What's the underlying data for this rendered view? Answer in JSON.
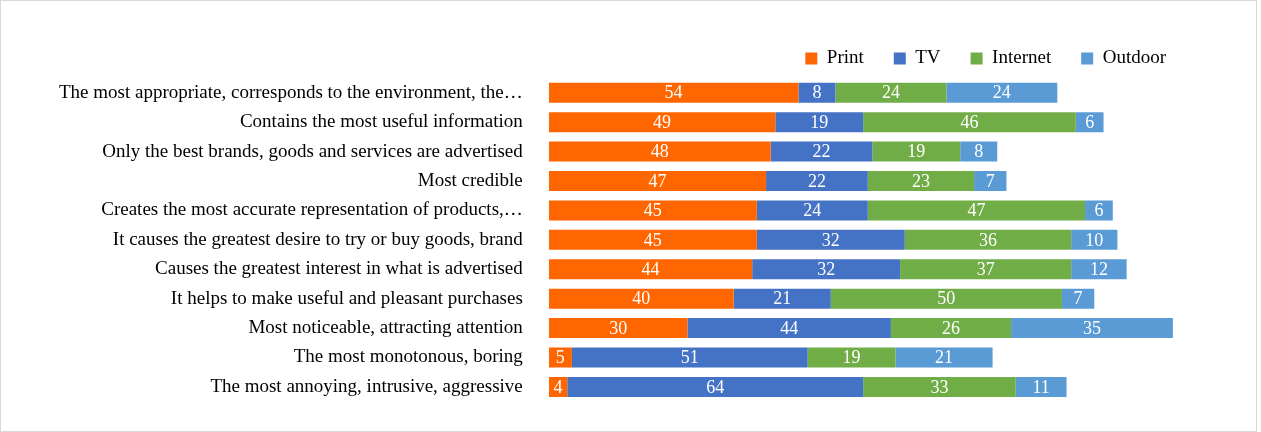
{
  "chart_data": {
    "type": "bar",
    "orientation": "horizontal",
    "stacked": true,
    "legend": "top",
    "data_labels": true,
    "categories": [
      "The most appropriate, corresponds to the environment, the…",
      "Contains the most useful information",
      "Only the best brands, goods and services are advertised",
      "Most credible",
      "Creates the most accurate representation of products,…",
      "It causes the greatest desire to try or buy goods, brand",
      "Causes the greatest interest in what is advertised",
      "It helps to make useful and pleasant purchases",
      "Most noticeable, attracting attention",
      "The most monotonous, boring",
      "The most annoying, intrusive, aggressive"
    ],
    "series": [
      {
        "name": "Print",
        "color": "#ff6600",
        "values": [
          54,
          49,
          48,
          47,
          45,
          45,
          44,
          40,
          30,
          5,
          4
        ]
      },
      {
        "name": "TV",
        "color": "#4472c4",
        "values": [
          8,
          19,
          22,
          22,
          24,
          32,
          32,
          21,
          44,
          51,
          64
        ]
      },
      {
        "name": "Internet",
        "color": "#70ad47",
        "values": [
          24,
          46,
          19,
          23,
          47,
          36,
          37,
          50,
          26,
          19,
          33
        ]
      },
      {
        "name": "Outdoor",
        "color": "#5b9bd5",
        "values": [
          24,
          6,
          8,
          7,
          6,
          10,
          12,
          7,
          35,
          21,
          11
        ]
      }
    ]
  }
}
